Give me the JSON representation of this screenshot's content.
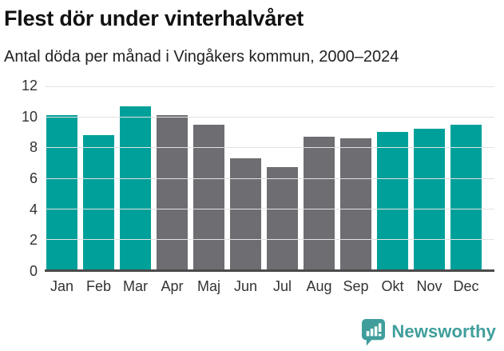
{
  "header": {
    "title": "Flest dör under vinterhalvåret",
    "subtitle": "Antal döda per månad i Vingåkers kommun, 2000–2024"
  },
  "chart_data": {
    "type": "bar",
    "title": "Flest dör under vinterhalvåret",
    "subtitle": "Antal döda per månad i Vingåkers kommun, 2000–2024",
    "categories": [
      "Jan",
      "Feb",
      "Mar",
      "Apr",
      "Maj",
      "Jun",
      "Jul",
      "Aug",
      "Sep",
      "Okt",
      "Nov",
      "Dec"
    ],
    "values": [
      10.1,
      8.8,
      10.7,
      10.1,
      9.5,
      7.3,
      6.7,
      8.7,
      8.6,
      9.0,
      9.2,
      9.5
    ],
    "highlighted": [
      true,
      true,
      true,
      false,
      false,
      false,
      false,
      false,
      false,
      true,
      true,
      true
    ],
    "ylim": [
      0,
      12
    ],
    "yticks": [
      0,
      2,
      4,
      6,
      8,
      10,
      12
    ],
    "grid": "horizontal",
    "legend": "none",
    "xlabel": "",
    "ylabel": "",
    "colors": {
      "highlight": "#00a09a",
      "default": "#6d6d72",
      "gridline": "#e2e2e2",
      "axis_line": "#4a4a4a",
      "tick_text": "#333333"
    }
  },
  "footer": {
    "brand": "Newsworthy",
    "brand_color": "#3f9e9b"
  }
}
